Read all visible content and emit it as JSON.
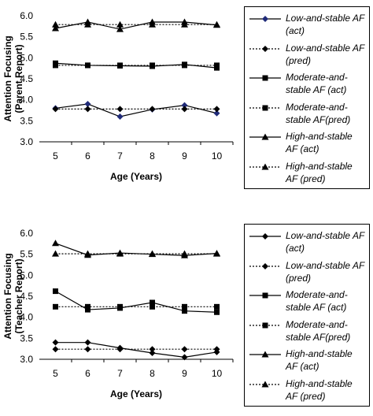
{
  "chart_data": [
    {
      "type": "line",
      "ylabel": "Attention Focusing (Parent Report)",
      "xlabel": "Age (Years)",
      "x": [
        5,
        6,
        7,
        8,
        9,
        10
      ],
      "ylim": [
        3.0,
        6.0
      ],
      "yticks": [
        "3.0",
        "3.5",
        "4.0",
        "4.5",
        "5.0",
        "5.5",
        "6.0"
      ],
      "xticks": [
        "5",
        "6",
        "7",
        "8",
        "9",
        "10"
      ],
      "grid": false,
      "legend_position": "right",
      "series": [
        {
          "name": "Low-and-stable AF (act)",
          "values": [
            3.8,
            3.9,
            3.6,
            3.77,
            3.87,
            3.68
          ],
          "marker": "diamond",
          "line": "solid"
        },
        {
          "name": "Low-and-stable AF (pred)",
          "values": [
            3.78,
            3.78,
            3.78,
            3.78,
            3.78,
            3.78
          ],
          "marker": "diamond",
          "line": "dotted"
        },
        {
          "name": "Moderate-and-stable AF (act)",
          "values": [
            4.87,
            4.82,
            4.81,
            4.8,
            4.84,
            4.76
          ],
          "marker": "square",
          "line": "solid"
        },
        {
          "name": "Moderate-and-stable AF(pred)",
          "values": [
            4.82,
            4.82,
            4.82,
            4.82,
            4.82,
            4.82
          ],
          "marker": "square",
          "line": "dotted"
        },
        {
          "name": "High-and-stable AF (act)",
          "values": [
            5.7,
            5.85,
            5.68,
            5.85,
            5.85,
            5.78
          ],
          "marker": "triangle",
          "line": "solid"
        },
        {
          "name": "High-and-stable AF (pred)",
          "values": [
            5.79,
            5.79,
            5.79,
            5.79,
            5.79,
            5.79
          ],
          "marker": "triangle",
          "line": "dotted"
        }
      ],
      "legend": [
        {
          "name": "Low-and-stable AF (act)",
          "label_lines": [
            "Low-and-stable AF",
            "(act)"
          ]
        },
        {
          "name": "Low-and-stable AF (pred)",
          "label_lines": [
            "Low-and-stable AF",
            "(pred)"
          ]
        },
        {
          "name": "Moderate-and-stable AF (act)",
          "label_lines": [
            "Moderate-and-",
            "stable AF (act)"
          ]
        },
        {
          "name": "Moderate-and-stable AF(pred)",
          "label_lines": [
            "Moderate-and-",
            "stable AF(pred)"
          ]
        },
        {
          "name": "High-and-stable AF (act)",
          "label_lines": [
            "High-and-stable",
            "AF (act)"
          ]
        },
        {
          "name": "High-and-stable AF (pred)",
          "label_lines": [
            "High-and-stable",
            "AF (pred)"
          ]
        }
      ]
    },
    {
      "type": "line",
      "ylabel": "Attention Focusing (Teacher Report)",
      "xlabel": "Age (Years)",
      "x": [
        5,
        6,
        7,
        8,
        9,
        10
      ],
      "ylim": [
        3.0,
        6.0
      ],
      "yticks": [
        "3.0",
        "3.5",
        "4.0",
        "4.5",
        "5.0",
        "5.5",
        "6.0"
      ],
      "xticks": [
        "5",
        "6",
        "7",
        "8",
        "9",
        "10"
      ],
      "grid": false,
      "legend_position": "right",
      "series": [
        {
          "name": "Low-and-stable AF (act)",
          "values": [
            3.4,
            3.4,
            3.27,
            3.15,
            3.05,
            3.17
          ],
          "marker": "diamond",
          "line": "solid"
        },
        {
          "name": "Low-and-stable AF (pred)",
          "values": [
            3.24,
            3.24,
            3.24,
            3.24,
            3.24,
            3.24
          ],
          "marker": "diamond",
          "line": "dotted"
        },
        {
          "name": "Moderate-and-stable AF (act)",
          "values": [
            4.62,
            4.18,
            4.22,
            4.35,
            4.15,
            4.12
          ],
          "marker": "square",
          "line": "solid"
        },
        {
          "name": "Moderate-and-stable AF(pred)",
          "values": [
            4.25,
            4.25,
            4.25,
            4.25,
            4.25,
            4.25
          ],
          "marker": "square",
          "line": "dotted"
        },
        {
          "name": "High-and-stable AF (act)",
          "values": [
            5.76,
            5.48,
            5.53,
            5.5,
            5.47,
            5.52
          ],
          "marker": "triangle",
          "line": "solid"
        },
        {
          "name": "High-and-stable AF (pred)",
          "values": [
            5.51,
            5.51,
            5.51,
            5.51,
            5.51,
            5.51
          ],
          "marker": "triangle",
          "line": "dotted"
        }
      ],
      "legend": [
        {
          "name": "Low-and-stable AF (act)",
          "label_lines": [
            "Low-and-stable AF",
            "(act)"
          ]
        },
        {
          "name": "Low-and-stable AF (pred)",
          "label_lines": [
            "Low-and-stable AF",
            "(pred)"
          ]
        },
        {
          "name": "Moderate-and-stable AF (act)",
          "label_lines": [
            "Moderate-and-",
            "stable AF (act)"
          ]
        },
        {
          "name": "Moderate-and-stable AF(pred)",
          "label_lines": [
            "Moderate-and-",
            "stable AF(pred)"
          ]
        },
        {
          "name": "High-and-stable AF (act)",
          "label_lines": [
            "High-and-stable",
            "AF (act)"
          ]
        },
        {
          "name": "High-and-stable AF (pred)",
          "label_lines": [
            "High-and-stable",
            "AF (pred)"
          ]
        }
      ]
    }
  ],
  "colors": {
    "low_series": "#000000",
    "moderate_series": "#000000",
    "high_series": "#000000",
    "low_act_marker": "#1f2a78"
  }
}
